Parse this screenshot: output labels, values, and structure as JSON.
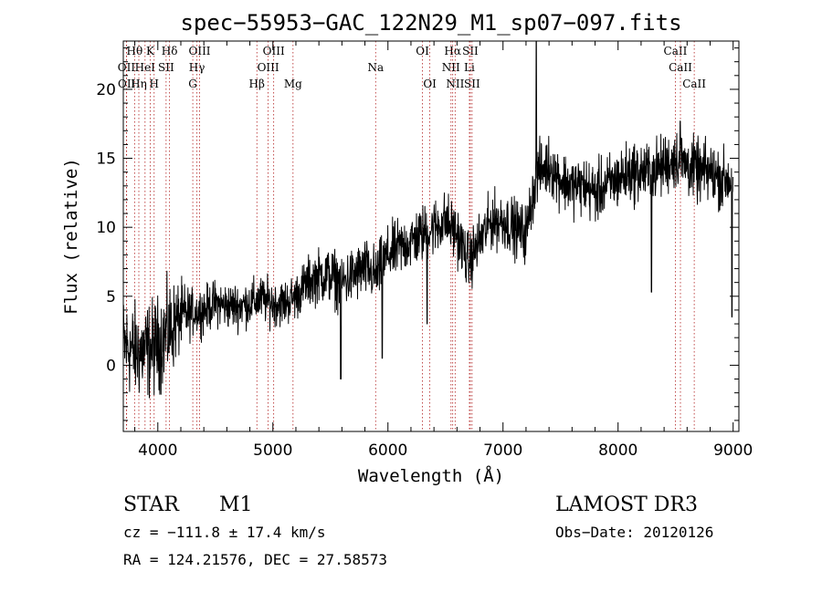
{
  "chart_data": {
    "type": "line",
    "title": "spec−55953−GAC_122N29_M1_sp07−097.fits",
    "xlabel": "Wavelength (Å)",
    "ylabel": "Flux (relative)",
    "xlim": [
      3700,
      9050
    ],
    "ylim": [
      -4.8,
      23.5
    ],
    "x_ticks": [
      4000,
      5000,
      6000,
      7000,
      8000,
      9000
    ],
    "y_ticks": [
      0,
      5,
      10,
      15,
      20
    ],
    "grid": false,
    "series": [
      {
        "name": "flux",
        "color": "#000000",
        "anchors": [
          [
            3700,
            1.5
          ],
          [
            3800,
            1.0
          ],
          [
            3900,
            1.0
          ],
          [
            4000,
            1.5
          ],
          [
            4100,
            2.5
          ],
          [
            4200,
            3.5
          ],
          [
            4300,
            3.8
          ],
          [
            4400,
            4.0
          ],
          [
            4500,
            4.5
          ],
          [
            4600,
            4.3
          ],
          [
            4700,
            4.3
          ],
          [
            4800,
            4.5
          ],
          [
            4900,
            4.8
          ],
          [
            5000,
            4.5
          ],
          [
            5100,
            4.5
          ],
          [
            5200,
            5.0
          ],
          [
            5300,
            6.0
          ],
          [
            5400,
            6.5
          ],
          [
            5500,
            6.5
          ],
          [
            5600,
            6.0
          ],
          [
            5700,
            6.5
          ],
          [
            5800,
            7.0
          ],
          [
            5900,
            6.5
          ],
          [
            6000,
            8.0
          ],
          [
            6100,
            8.5
          ],
          [
            6200,
            9.0
          ],
          [
            6300,
            9.5
          ],
          [
            6400,
            10.0
          ],
          [
            6500,
            10.5
          ],
          [
            6600,
            9.5
          ],
          [
            6700,
            7.5
          ],
          [
            6800,
            9.0
          ],
          [
            6900,
            10.5
          ],
          [
            7000,
            10.5
          ],
          [
            7100,
            10.0
          ],
          [
            7200,
            9.5
          ],
          [
            7250,
            12.0
          ],
          [
            7300,
            14.0
          ],
          [
            7400,
            14.5
          ],
          [
            7500,
            13.5
          ],
          [
            7600,
            13.0
          ],
          [
            7700,
            13.0
          ],
          [
            7800,
            12.5
          ],
          [
            7900,
            13.0
          ],
          [
            8000,
            13.5
          ],
          [
            8100,
            14.0
          ],
          [
            8200,
            14.0
          ],
          [
            8300,
            14.0
          ],
          [
            8400,
            14.5
          ],
          [
            8500,
            15.0
          ],
          [
            8600,
            14.5
          ],
          [
            8700,
            14.0
          ],
          [
            8800,
            14.0
          ],
          [
            8900,
            13.5
          ],
          [
            9000,
            13.5
          ]
        ],
        "noise": [
          [
            3700,
            2.5
          ],
          [
            4100,
            2.5
          ],
          [
            4300,
            1.2
          ],
          [
            5200,
            1.2
          ],
          [
            5500,
            1.5
          ],
          [
            6200,
            1.5
          ],
          [
            6800,
            1.5
          ],
          [
            7300,
            1.5
          ],
          [
            8000,
            1.6
          ],
          [
            9000,
            1.6
          ]
        ],
        "features": [
          [
            5590,
            -1.0
          ],
          [
            5950,
            0.5
          ],
          [
            6340,
            3.0
          ],
          [
            7290,
            26.0
          ],
          [
            8290,
            5.3
          ],
          [
            8540,
            17.7
          ],
          [
            8990,
            3.5
          ]
        ]
      }
    ],
    "line_markers": [
      {
        "label": "Hθ",
        "x": 3798,
        "row": 0
      },
      {
        "label": "K",
        "x": 3934,
        "row": 0
      },
      {
        "label": "Hδ",
        "x": 4102,
        "row": 0
      },
      {
        "label": "OIII",
        "x": 4363,
        "row": 0
      },
      {
        "label": "OIII",
        "x": 5007,
        "row": 0
      },
      {
        "label": "OI",
        "x": 6300,
        "row": 0
      },
      {
        "label": "Hα",
        "x": 6563,
        "row": 0
      },
      {
        "label": "SII",
        "x": 6716,
        "row": 0
      },
      {
        "label": "CaII",
        "x": 8498,
        "row": 0
      },
      {
        "label": "OII",
        "x": 3727,
        "row": 1
      },
      {
        "label": "HeI",
        "x": 3889,
        "row": 1
      },
      {
        "label": "SII",
        "x": 4072,
        "row": 1
      },
      {
        "label": "Hγ",
        "x": 4340,
        "row": 1
      },
      {
        "label": "OIII",
        "x": 4959,
        "row": 1
      },
      {
        "label": "Na",
        "x": 5893,
        "row": 1
      },
      {
        "label": "NII",
        "x": 6548,
        "row": 1
      },
      {
        "label": "Li",
        "x": 6708,
        "row": 1
      },
      {
        "label": "CaII",
        "x": 8542,
        "row": 1
      },
      {
        "label": "OII",
        "x": 3729,
        "row": 2
      },
      {
        "label": "Hη",
        "x": 3835,
        "row": 2
      },
      {
        "label": "H",
        "x": 3968,
        "row": 2
      },
      {
        "label": "G",
        "x": 4304,
        "row": 2
      },
      {
        "label": "Hβ",
        "x": 4861,
        "row": 2
      },
      {
        "label": "Mg",
        "x": 5175,
        "row": 2
      },
      {
        "label": "OI",
        "x": 6364,
        "row": 2
      },
      {
        "label": "NII",
        "x": 6584,
        "row": 2
      },
      {
        "label": "SII",
        "x": 6731,
        "row": 2
      },
      {
        "label": "CaII",
        "x": 8662,
        "row": 2
      }
    ]
  },
  "info": {
    "object_type": "STAR",
    "subclass": "M1",
    "survey": "LAMOST DR3",
    "cz": "cz = −111.8 ± 17.4 km/s",
    "obs_date": "Obs−Date: 20120126",
    "radec": "RA = 124.21576, DEC =  27.58573"
  }
}
